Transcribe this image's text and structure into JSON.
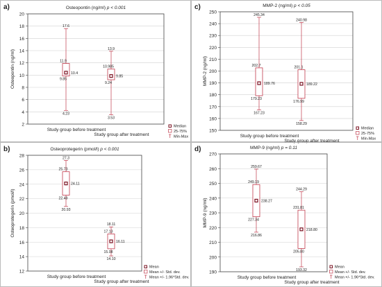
{
  "chart_data": [
    {
      "type": "boxplot",
      "panel_label": "a)",
      "title": "Osteopontin (ng/ml) ",
      "title_p": "p < 0.001",
      "ylabel": "Osteopontin (ng/ml)",
      "ylim": [
        2,
        20
      ],
      "yticks": [
        2,
        4,
        6,
        8,
        10,
        12,
        14,
        16,
        18,
        20
      ],
      "categories": [
        "Study group before treatment",
        "Study group after treatment"
      ],
      "boxes": [
        {
          "min": 4.23,
          "q1": 9.85,
          "center": 10.4,
          "q3": 11.9,
          "max": 17.6,
          "labels": {
            "min": "4.23",
            "q1": "9.85",
            "center": "10.4",
            "q3": "11.9",
            "max": "17.6"
          }
        },
        {
          "min": 3.53,
          "q1": 9.24,
          "center": 9.85,
          "q3": 10.985,
          "max": 13.9,
          "labels": {
            "min": "3.53",
            "q1": "9.24",
            "center": "9.85",
            "q3": "10.985",
            "max": "13.9"
          }
        }
      ],
      "legend": [
        "Median",
        "25-75%",
        "Min-Max"
      ]
    },
    {
      "type": "boxplot",
      "panel_label": "c)",
      "title": "MMP-2 (ng/ml) ",
      "title_p": "p < 0.05",
      "ylabel": "MMP-2 (ng/ml)",
      "ylim": [
        150,
        250
      ],
      "yticks": [
        150,
        160,
        170,
        180,
        190,
        200,
        210,
        220,
        230,
        240,
        250
      ],
      "categories": [
        "Study group before treatment",
        "Study group after treatment"
      ],
      "boxes": [
        {
          "min": 167.23,
          "q1": 179.23,
          "center": 189.76,
          "q3": 202.7,
          "max": 245.34,
          "labels": {
            "min": "167.23",
            "q1": "179.23",
            "center": "189.76",
            "q3": "202.7",
            "max": "245.34"
          }
        },
        {
          "min": 158.29,
          "q1": 176.99,
          "center": 189.22,
          "q3": 201.1,
          "max": 240.98,
          "labels": {
            "min": "158.29",
            "q1": "176.99",
            "center": "189.22",
            "q3": "201.1",
            "max": "240.98"
          }
        }
      ],
      "legend": [
        "Median",
        "25-75%",
        "Min-Max"
      ]
    },
    {
      "type": "boxplot",
      "panel_label": "b)",
      "title": "Osteoprotegerin (pmol/l) ",
      "title_p": "p < 0.001",
      "ylabel": "Osteoprotegerin (pmol/l)",
      "ylim": [
        12,
        28
      ],
      "yticks": [
        12,
        14,
        16,
        18,
        20,
        22,
        24,
        26,
        28
      ],
      "categories": [
        "Study group before treatment",
        "Study group after treatment"
      ],
      "boxes": [
        {
          "min": 20.93,
          "q1": 22.49,
          "center": 24.11,
          "q3": 25.73,
          "max": 27.3,
          "labels": {
            "min": "20.93",
            "q1": "22.49",
            "center": "24.11",
            "q3": "25.73",
            "max": "27.3"
          }
        },
        {
          "min": 14.1,
          "q1": 15.08,
          "center": 16.11,
          "q3": 17.13,
          "max": 18.11,
          "labels": {
            "min": "14.10",
            "q1": "15.08",
            "center": "16.11",
            "q3": "17.13",
            "max": "18.11"
          }
        }
      ],
      "legend": [
        "Mean",
        "Mean +/- Std. dev.",
        "Mean +/- 1.96*Std. dev."
      ]
    },
    {
      "type": "boxplot",
      "panel_label": "d)",
      "title": "MMP-9 (ng/ml) ",
      "title_p": "p = 0.11",
      "ylabel": "MMP-9 (ng/ml)",
      "ylim": [
        190,
        270
      ],
      "yticks": [
        190,
        200,
        210,
        220,
        230,
        240,
        250,
        260,
        270
      ],
      "categories": [
        "Study group before treatment",
        "Study group after treatment"
      ],
      "boxes": [
        {
          "min": 216.86,
          "q1": 227.34,
          "center": 238.27,
          "q3": 249.19,
          "max": 259.67,
          "labels": {
            "min": "216.86",
            "q1": "227.34",
            "center": "238.27",
            "q3": "249.19",
            "max": "259.67"
          }
        },
        {
          "min": 193.32,
          "q1": 205.8,
          "center": 218.8,
          "q3": 231.81,
          "max": 244.29,
          "labels": {
            "min": "193.32",
            "q1": "205.80",
            "center": "218.80",
            "q3": "231.81",
            "max": "244.29"
          }
        }
      ],
      "legend": [
        "Mean",
        "Mean +/- Std. dev.",
        "Mean +/- 1.96*Std. dev."
      ]
    }
  ],
  "colors": {
    "box": "#c0394b",
    "whisker": "#c0394b",
    "frame": "#444444",
    "grid": "#d0d0d0"
  }
}
